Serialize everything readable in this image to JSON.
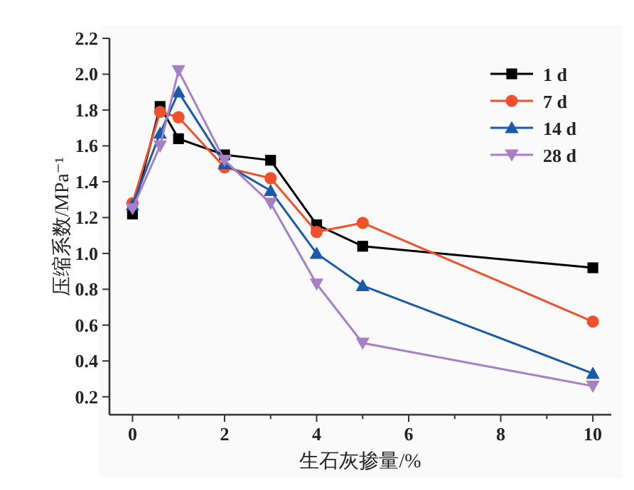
{
  "chart_data": {
    "type": "line",
    "xlabel": "生石灰掺量/%",
    "ylabel": "压缩系数/MPa⁻¹",
    "x": [
      0,
      0.6,
      1,
      2,
      3,
      4,
      5,
      10
    ],
    "series": [
      {
        "name": "1 d",
        "color": "#000000",
        "marker": "square",
        "values": [
          1.22,
          1.82,
          1.64,
          1.55,
          1.52,
          1.16,
          1.04,
          0.92
        ]
      },
      {
        "name": "7 d",
        "color": "#f0502a",
        "marker": "circle",
        "values": [
          1.28,
          1.79,
          1.76,
          1.48,
          1.42,
          1.12,
          1.17,
          0.62
        ]
      },
      {
        "name": "14 d",
        "color": "#1a5aa8",
        "marker": "triangle",
        "values": [
          1.27,
          1.67,
          1.9,
          1.5,
          1.35,
          1.0,
          0.82,
          0.33
        ]
      },
      {
        "name": "28 d",
        "color": "#a77fc6",
        "marker": "triangle-down",
        "values": [
          1.25,
          1.6,
          2.02,
          1.52,
          1.28,
          0.83,
          0.5,
          0.26
        ]
      }
    ],
    "xlim": [
      -0.5,
      10.4
    ],
    "ylim": [
      0.1,
      2.2
    ],
    "xticks": [
      0,
      {
        "value": 1,
        "label": null
      },
      2,
      {
        "value": 3,
        "label": null
      },
      4,
      {
        "value": 5,
        "label": null
      },
      6,
      {
        "value": 7,
        "label": null
      },
      8,
      {
        "value": 9,
        "label": null
      },
      10
    ],
    "yticks": [
      {
        "value": 0.2,
        "label": "0.2"
      },
      {
        "value": 0.4,
        "label": "0.4"
      },
      {
        "value": 0.6,
        "label": "0.6"
      },
      {
        "value": 0.8,
        "label": "0.8"
      },
      {
        "value": 1.0,
        "label": "1.0"
      },
      {
        "value": 1.2,
        "label": "1.2"
      },
      {
        "value": 1.4,
        "label": "1.4"
      },
      {
        "value": 1.6,
        "label": "1.6"
      },
      {
        "value": 1.8,
        "label": "1.8"
      },
      {
        "value": 2.0,
        "label": "2.0"
      },
      {
        "value": 2.2,
        "label": "2.2"
      }
    ],
    "grid": false,
    "legend": "top right",
    "line_style": "solid"
  }
}
